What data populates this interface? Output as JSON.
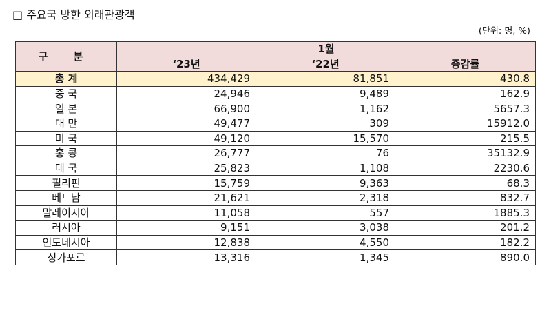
{
  "title": "□ 주요국 방한 외래관광객",
  "unit": "(단위: 명, %)",
  "table": {
    "header": {
      "category": "구 분",
      "month": "1월",
      "col_2023": "‘23년",
      "col_2022": "‘22년",
      "col_change": "증감률"
    },
    "rows": [
      {
        "label": "총 계",
        "v2023": "434,429",
        "v2022": "81,851",
        "change": "430.8"
      },
      {
        "label": "중 국",
        "v2023": "24,946",
        "v2022": "9,489",
        "change": "162.9"
      },
      {
        "label": "일 본",
        "v2023": "66,900",
        "v2022": "1,162",
        "change": "5657.3"
      },
      {
        "label": "대 만",
        "v2023": "49,477",
        "v2022": "309",
        "change": "15912.0"
      },
      {
        "label": "미 국",
        "v2023": "49,120",
        "v2022": "15,570",
        "change": "215.5"
      },
      {
        "label": "홍 콩",
        "v2023": "26,777",
        "v2022": "76",
        "change": "35132.9"
      },
      {
        "label": "태 국",
        "v2023": "25,823",
        "v2022": "1,108",
        "change": "2230.6"
      },
      {
        "label": "필리핀",
        "v2023": "15,759",
        "v2022": "9,363",
        "change": "68.3"
      },
      {
        "label": "베트남",
        "v2023": "21,621",
        "v2022": "2,318",
        "change": "832.7"
      },
      {
        "label": "말레이시아",
        "v2023": "11,058",
        "v2022": "557",
        "change": "1885.3"
      },
      {
        "label": "러시아",
        "v2023": "9,151",
        "v2022": "3,038",
        "change": "201.2"
      },
      {
        "label": "인도네시아",
        "v2023": "12,838",
        "v2022": "4,550",
        "change": "182.2"
      },
      {
        "label": "싱가포르",
        "v2023": "13,316",
        "v2022": "1,345",
        "change": "890.0"
      }
    ]
  }
}
